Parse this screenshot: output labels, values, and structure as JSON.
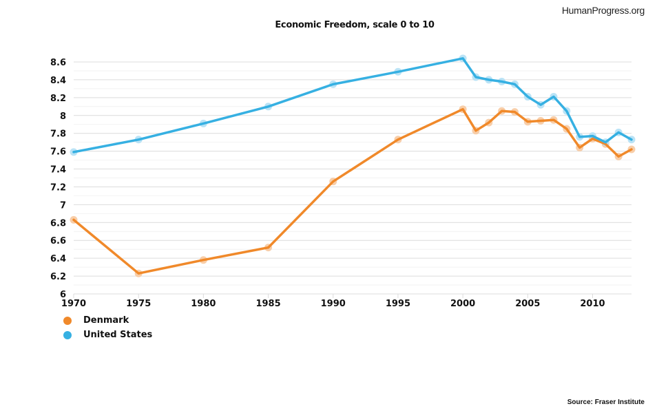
{
  "brand": "HumanProgress.org",
  "source": "Source: Fraser Institute",
  "chart_data": {
    "type": "line",
    "title": "Economic Freedom, scale 0 to 10",
    "xlabel": "",
    "ylabel": "",
    "x": [
      1970,
      1975,
      1980,
      1985,
      1990,
      1995,
      2000,
      2001,
      2002,
      2003,
      2004,
      2005,
      2006,
      2007,
      2008,
      2009,
      2010,
      2011,
      2012,
      2013
    ],
    "xlim": [
      1970,
      2013
    ],
    "ylim": [
      6,
      8.6
    ],
    "x_ticks": [
      "1970",
      "1975",
      "1980",
      "1985",
      "1990",
      "1995",
      "2000",
      "2005",
      "2010"
    ],
    "x_tick_values": [
      1970,
      1975,
      1980,
      1985,
      1990,
      1995,
      2000,
      2005,
      2010
    ],
    "y_ticks": [
      "6",
      "6.2",
      "6.4",
      "6.6",
      "6.8",
      "7",
      "7.2",
      "7.4",
      "7.6",
      "7.8",
      "8",
      "8.2",
      "8.4",
      "8.6"
    ],
    "y_tick_values": [
      6,
      6.2,
      6.4,
      6.6,
      6.8,
      7,
      7.2,
      7.4,
      7.6,
      7.8,
      8,
      8.2,
      8.4,
      8.6
    ],
    "grid": true,
    "legend_position": "bottom-left",
    "series": [
      {
        "name": "Denmark",
        "color": "#f0892a",
        "marker_color": "#f7c9a0",
        "values": [
          6.83,
          6.23,
          6.38,
          6.52,
          7.26,
          7.73,
          8.07,
          7.83,
          7.92,
          8.05,
          8.04,
          7.93,
          7.94,
          7.95,
          7.85,
          7.64,
          7.74,
          7.68,
          7.54,
          7.62
        ]
      },
      {
        "name": "United States",
        "color": "#36b0e2",
        "marker_color": "#b3e0f5",
        "values": [
          7.59,
          7.73,
          7.91,
          8.1,
          8.35,
          8.49,
          8.64,
          8.43,
          8.4,
          8.38,
          8.35,
          8.21,
          8.12,
          8.21,
          8.05,
          7.76,
          7.77,
          7.7,
          7.81,
          7.73
        ]
      }
    ]
  }
}
